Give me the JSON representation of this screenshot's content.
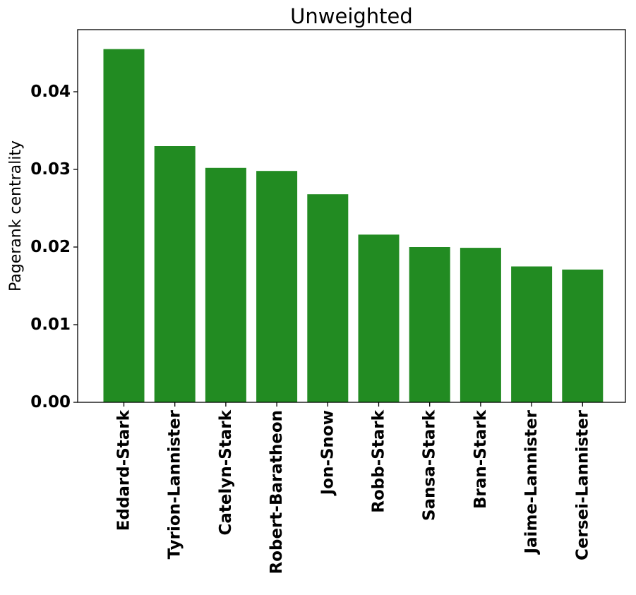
{
  "chart_data": {
    "type": "bar",
    "title": "Unweighted",
    "xlabel": "",
    "ylabel": "Pagerank centrality",
    "ylim": [
      0,
      0.048
    ],
    "yticks": [
      0.0,
      0.01,
      0.02,
      0.03,
      0.04
    ],
    "ytick_labels": [
      "0.00",
      "0.01",
      "0.02",
      "0.03",
      "0.04"
    ],
    "categories": [
      "Eddard-Stark",
      "Tyrion-Lannister",
      "Catelyn-Stark",
      "Robert-Baratheon",
      "Jon-Snow",
      "Robb-Stark",
      "Sansa-Stark",
      "Bran-Stark",
      "Jaime-Lannister",
      "Cersei-Lannister"
    ],
    "values": [
      0.0455,
      0.033,
      0.0302,
      0.0298,
      0.0268,
      0.0216,
      0.02,
      0.0199,
      0.0175,
      0.0171
    ],
    "bar_color": "#228b22",
    "grid": false,
    "legend": false
  }
}
